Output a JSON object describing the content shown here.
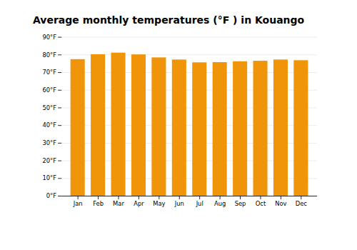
{
  "chart_data": {
    "type": "bar",
    "title": "Average monthly temperatures (°F ) in Kouango",
    "categories": [
      "Jan",
      "Feb",
      "Mar",
      "Apr",
      "May",
      "Jun",
      "Jul",
      "Aug",
      "Sep",
      "Oct",
      "Nov",
      "Dec"
    ],
    "values": [
      77.4,
      80.2,
      81.1,
      80.1,
      78.4,
      77.2,
      75.6,
      75.7,
      76.2,
      76.5,
      77.2,
      76.8
    ],
    "color": "#F0940A",
    "ylim": [
      0,
      90
    ],
    "yticks": [
      {
        "value": 0,
        "label": "0°F"
      },
      {
        "value": 10,
        "label": "10°F"
      },
      {
        "value": 20,
        "label": "20°F"
      },
      {
        "value": 30,
        "label": "30°F"
      },
      {
        "value": 40,
        "label": "40°F"
      },
      {
        "value": 50,
        "label": "50°F"
      },
      {
        "value": 60,
        "label": "60°F"
      },
      {
        "value": 70,
        "label": "70°F"
      },
      {
        "value": 80,
        "label": "80°F"
      },
      {
        "value": 90,
        "label": "90°F"
      }
    ],
    "grid": true
  }
}
